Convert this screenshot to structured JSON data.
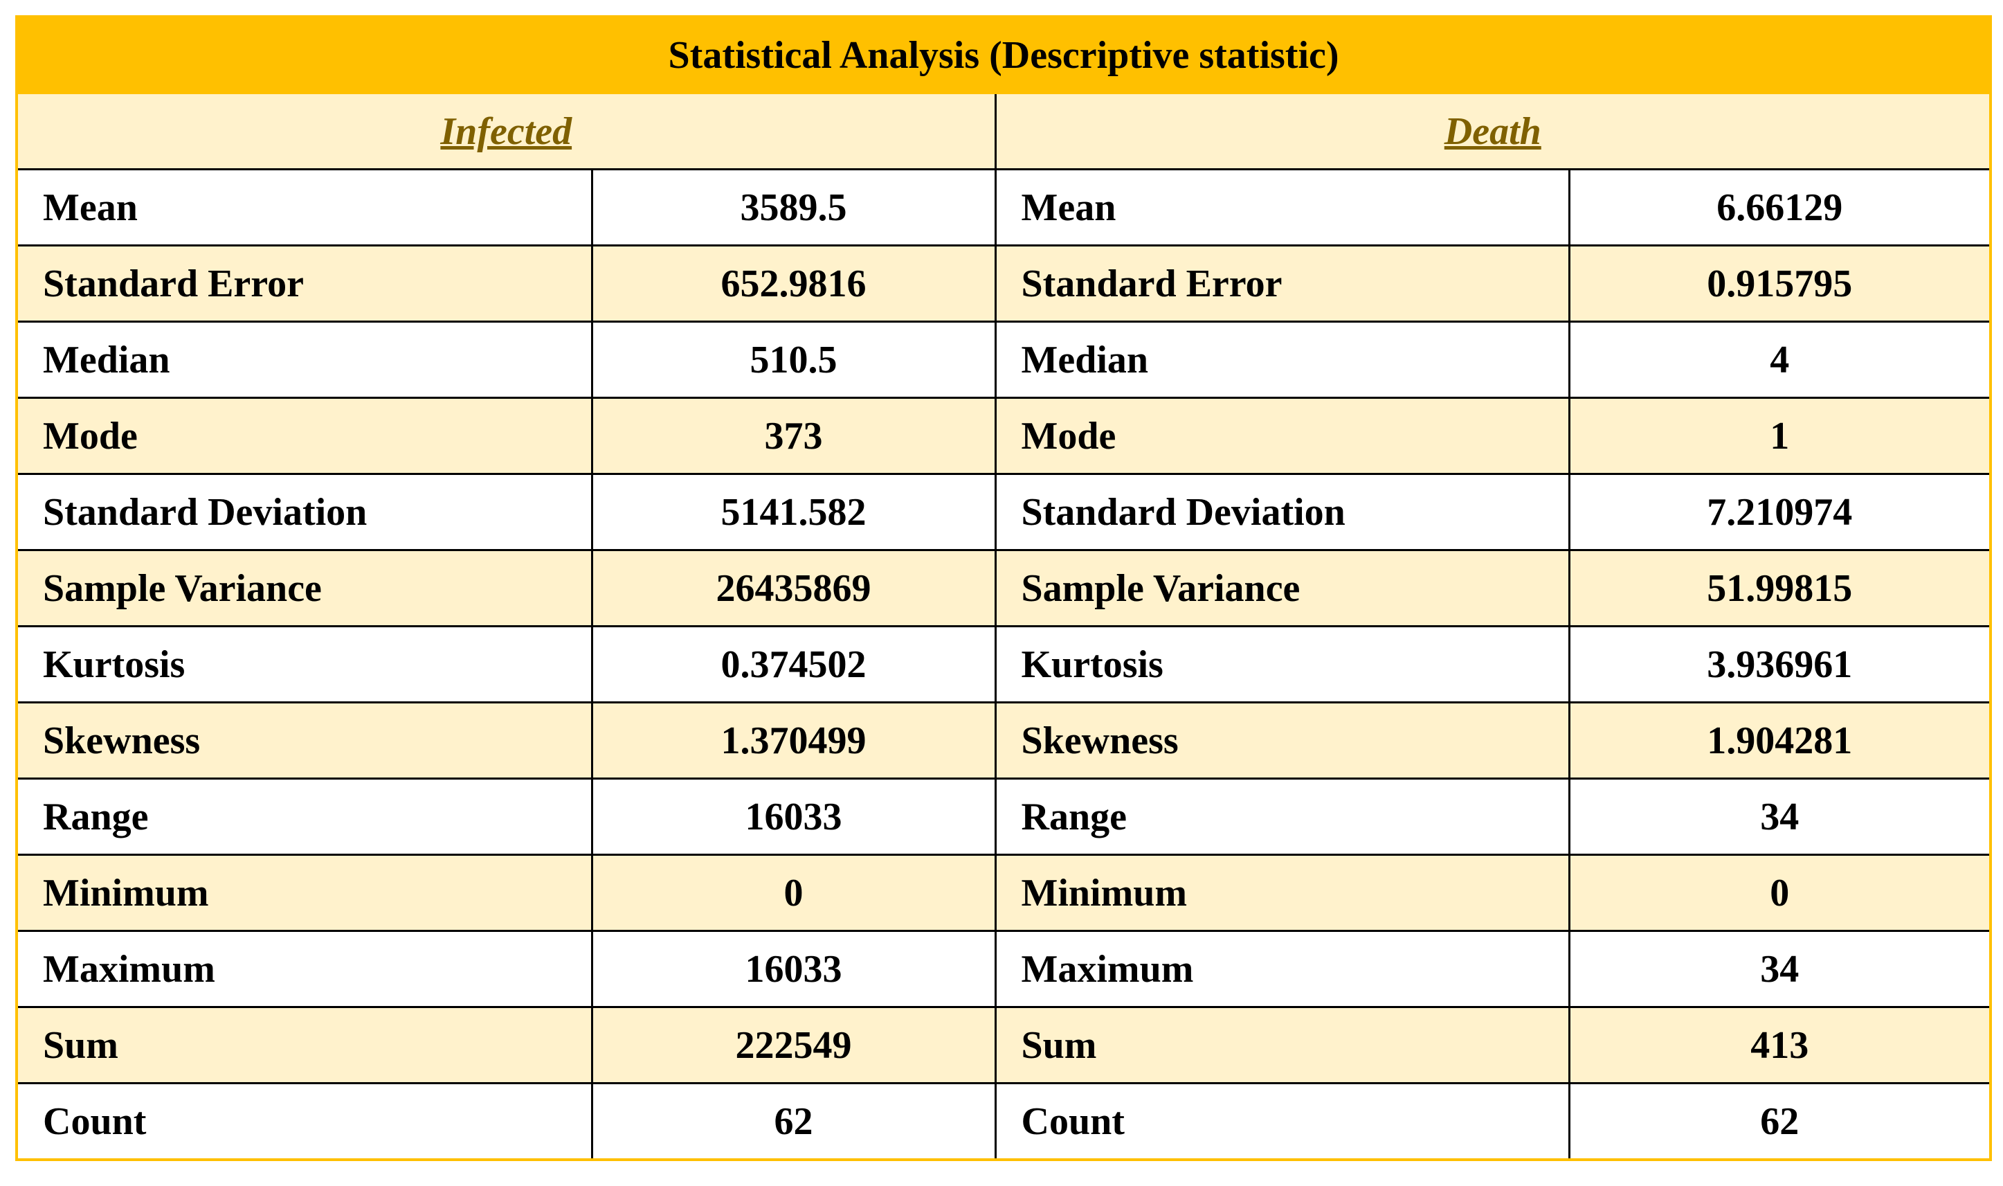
{
  "table": {
    "title": "Statistical Analysis (Descriptive statistic)",
    "headers": [
      "Infected",
      "Death"
    ],
    "rows": [
      [
        "Mean",
        "3589.5",
        "Mean",
        "6.66129"
      ],
      [
        "Standard Error",
        "652.9816",
        "Standard Error",
        "0.915795"
      ],
      [
        "Median",
        "510.5",
        "Median",
        "4"
      ],
      [
        "Mode",
        "373",
        "Mode",
        "1"
      ],
      [
        "Standard Deviation",
        "5141.582",
        "Standard Deviation",
        "7.210974"
      ],
      [
        "Sample Variance",
        "26435869",
        "Sample Variance",
        "51.99815"
      ],
      [
        "Kurtosis",
        "0.374502",
        "Kurtosis",
        "3.936961"
      ],
      [
        "Skewness",
        "1.370499",
        "Skewness",
        "1.904281"
      ],
      [
        "Range",
        "16033",
        "Range",
        "34"
      ],
      [
        "Minimum",
        "0",
        "Minimum",
        "0"
      ],
      [
        "Maximum",
        "16033",
        "Maximum",
        "34"
      ],
      [
        "Sum",
        "222549",
        "Sum",
        "413"
      ],
      [
        "Count",
        "62",
        "Count",
        "62"
      ]
    ]
  }
}
